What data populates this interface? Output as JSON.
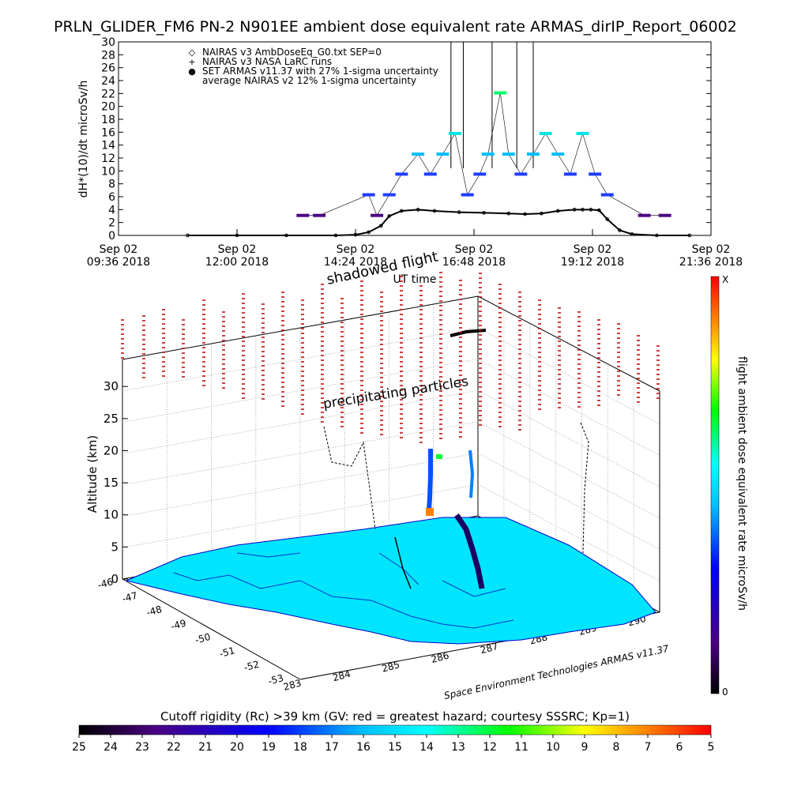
{
  "title": "PRLN_GLIDER_FM6 PN-2 N901EE ambient dose equivalent rate ARMAS_dirIP_Report_06002",
  "chart_data": [
    {
      "type": "scatter",
      "ylabel": "dH*(10)/dt microSv/h",
      "xlabel": "UT time",
      "ylim": [
        0,
        30
      ],
      "yticks": [
        "0",
        "2",
        "4",
        "6",
        "8",
        "10",
        "12",
        "14",
        "16",
        "18",
        "20",
        "22",
        "24",
        "26",
        "28",
        "30"
      ],
      "xticks": [
        {
          "day": "Sep 02",
          "time": "09:36 2018"
        },
        {
          "day": "Sep 02",
          "time": "12:00 2018"
        },
        {
          "day": "Sep 02",
          "time": "14:24 2018"
        },
        {
          "day": "Sep 02",
          "time": "16:48 2018"
        },
        {
          "day": "Sep 02",
          "time": "19:12 2018"
        },
        {
          "day": "Sep 02",
          "time": "21:36 2018"
        }
      ],
      "legend": [
        {
          "marker": "◇",
          "label": "NAIRAS v3 AmbDoseEq_G0.txt SEP=0"
        },
        {
          "marker": "+",
          "label": "NAIRAS v3 NASA LaRC runs"
        },
        {
          "marker": "●",
          "label": "SET ARMAS v11.37 with 27% 1-sigma uncertainty"
        },
        {
          "marker": "",
          "label": "average NAIRAS v2 12% 1-sigma uncertainty"
        }
      ],
      "series": [
        {
          "name": "NAIRAS v3 AmbDoseEq_G0.txt SEP=0",
          "color": "#000000",
          "x": [
            "11:00",
            "12:00",
            "13:00",
            "14:00",
            "14:24",
            "14:40",
            "14:55",
            "15:05",
            "15:20",
            "15:40",
            "16:00",
            "16:30",
            "17:00",
            "17:30",
            "17:50",
            "18:10",
            "18:30",
            "18:50",
            "19:00",
            "19:10",
            "19:20",
            "19:30",
            "19:45",
            "20:00",
            "20:30",
            "21:10"
          ],
          "y": [
            0,
            0,
            0,
            0,
            0.1,
            0.5,
            1.5,
            3.0,
            3.8,
            4.0,
            3.8,
            3.6,
            3.5,
            3.4,
            3.3,
            3.4,
            3.8,
            4.0,
            4.0,
            4.0,
            3.9,
            2.5,
            0.8,
            0.2,
            0,
            0
          ]
        },
        {
          "name": "SET ARMAS v11.37 with 27% 1-sigma uncertainty",
          "x": [
            "13:20",
            "13:40",
            "14:40",
            "14:50",
            "15:05",
            "15:20",
            "15:40",
            "15:55",
            "16:10",
            "16:25",
            "16:40",
            "16:55",
            "17:05",
            "17:20",
            "17:30",
            "17:45",
            "18:00",
            "18:15",
            "18:30",
            "18:45",
            "19:00",
            "19:15",
            "19:30",
            "20:15",
            "20:40"
          ],
          "y": [
            3.1,
            3.1,
            6.3,
            3.1,
            6.3,
            9.5,
            12.6,
            9.5,
            12.6,
            15.8,
            6.3,
            9.5,
            12.6,
            22.1,
            12.6,
            9.5,
            12.6,
            15.8,
            12.6,
            9.5,
            15.8,
            9.5,
            6.3,
            3.1,
            3.1
          ]
        }
      ]
    },
    {
      "type": "scatter",
      "zlabel": "Altitude (km)",
      "zticks": [
        "0",
        "5",
        "10",
        "15",
        "20",
        "25",
        "30"
      ],
      "yticks": [
        "-46",
        "-47",
        "-48",
        "-49",
        "-50",
        "-51",
        "-52",
        "-53"
      ],
      "xticks": [
        "283",
        "284",
        "285",
        "286",
        "287",
        "288",
        "289",
        "290"
      ],
      "annotations": [
        "shadowed flight",
        "precipitating particles"
      ],
      "watermark": "Space Environment Technologies ARMAS v11.37",
      "colorbar": {
        "label": "flight ambient dose equivalent rate microSv/h",
        "top": "X",
        "bottom": "0",
        "colors": [
          "#000000",
          "#4b0082",
          "#0000ff",
          "#00bfff",
          "#00ffff",
          "#00ff00",
          "#ffff00",
          "#ff8000",
          "#ff0000"
        ]
      }
    }
  ],
  "rigidity": {
    "label": "Cutoff rigidity (Rc) >39 km (GV: red = greatest hazard; courtesy SSSRC; Kp=1)",
    "ticks": [
      "25",
      "24",
      "23",
      "22",
      "21",
      "20",
      "19",
      "18",
      "17",
      "16",
      "15",
      "14",
      "13",
      "12",
      "11",
      "10",
      "9",
      "8",
      "7",
      "6",
      "5"
    ]
  }
}
